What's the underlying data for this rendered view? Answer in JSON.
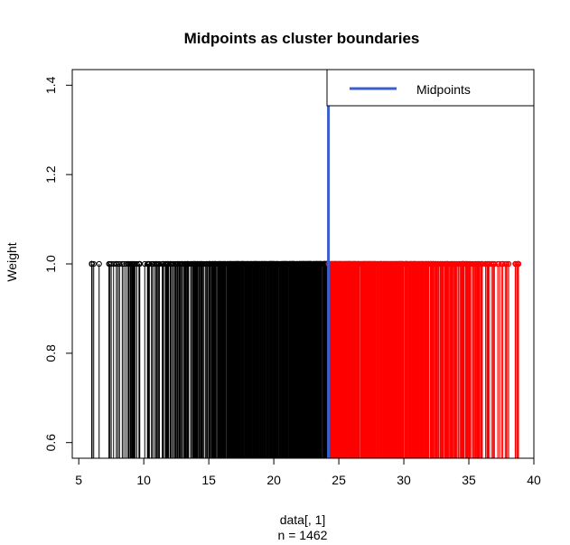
{
  "chart_data": {
    "type": "stem",
    "title": "Midpoints as cluster boundaries",
    "xlabel": "data[, 1]",
    "xlabel_sub": "n = 1462",
    "ylabel": "Weight",
    "xlim": [
      4.5,
      40
    ],
    "ylim": [
      0.565,
      1.435
    ],
    "x_ticks": [
      5,
      10,
      15,
      20,
      25,
      30,
      35,
      40
    ],
    "y_ticks": [
      0.6,
      0.8,
      1.0,
      1.2,
      1.4
    ],
    "y_tick_labels": [
      "0.6",
      "0.8",
      "1.0",
      "1.2",
      "1.4"
    ],
    "n": 1462,
    "stem_weight": 1.0,
    "x_range": [
      6.0,
      38.8
    ],
    "midpoint": 24.2,
    "series": [
      {
        "cluster": 1,
        "color": "#000000",
        "x_range": [
          6.0,
          24.2
        ]
      },
      {
        "cluster": 2,
        "color": "#ff0000",
        "x_range": [
          24.2,
          38.8
        ]
      }
    ],
    "legend": {
      "position": "top-right",
      "label": "Midpoints",
      "color": "#3a5fcd"
    }
  }
}
